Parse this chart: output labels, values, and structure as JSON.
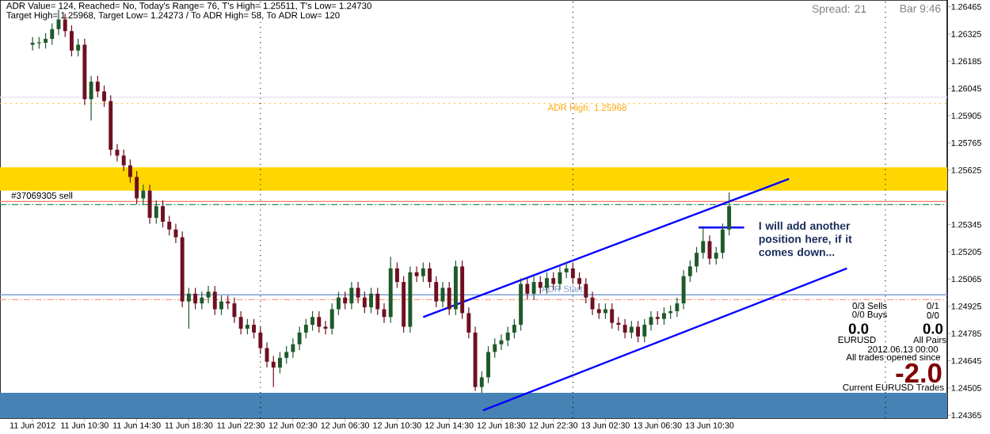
{
  "chart_data": {
    "type": "candlestick",
    "x": [
      "2012-06-11T06:30",
      "2012-06-11T07:00",
      "2012-06-11T07:30",
      "2012-06-11T08:00",
      "2012-06-11T08:30",
      "2012-06-11T09:00",
      "2012-06-11T09:30",
      "2012-06-11T10:00",
      "2012-06-11T10:30",
      "2012-06-11T11:00",
      "2012-06-11T11:30",
      "2012-06-11T12:00",
      "2012-06-11T12:30",
      "2012-06-11T13:00",
      "2012-06-11T13:30",
      "2012-06-11T14:00",
      "2012-06-11T14:30",
      "2012-06-11T15:00",
      "2012-06-11T15:30",
      "2012-06-11T16:00",
      "2012-06-11T16:30",
      "2012-06-11T17:00",
      "2012-06-11T17:30",
      "2012-06-11T18:00",
      "2012-06-11T18:30",
      "2012-06-11T19:00",
      "2012-06-11T19:30",
      "2012-06-11T20:00",
      "2012-06-11T20:30",
      "2012-06-11T21:00",
      "2012-06-11T21:30",
      "2012-06-11T22:00",
      "2012-06-11T22:30",
      "2012-06-11T23:00",
      "2012-06-11T23:30",
      "2012-06-12T00:00",
      "2012-06-12T00:30",
      "2012-06-12T01:00",
      "2012-06-12T01:30",
      "2012-06-12T02:00",
      "2012-06-12T02:30",
      "2012-06-12T03:00",
      "2012-06-12T03:30",
      "2012-06-12T04:00",
      "2012-06-12T04:30",
      "2012-06-12T05:00",
      "2012-06-12T05:30",
      "2012-06-12T06:00",
      "2012-06-12T06:30",
      "2012-06-12T07:00",
      "2012-06-12T07:30",
      "2012-06-12T08:00",
      "2012-06-12T08:30",
      "2012-06-12T09:00",
      "2012-06-12T09:30",
      "2012-06-12T10:00",
      "2012-06-12T10:30",
      "2012-06-12T11:00",
      "2012-06-12T11:30",
      "2012-06-12T12:00",
      "2012-06-12T12:30",
      "2012-06-12T13:00",
      "2012-06-12T13:30",
      "2012-06-12T14:00",
      "2012-06-12T14:30",
      "2012-06-12T15:00",
      "2012-06-12T15:30",
      "2012-06-12T16:00",
      "2012-06-12T16:30",
      "2012-06-12T17:00",
      "2012-06-12T17:30",
      "2012-06-12T18:00",
      "2012-06-12T18:30",
      "2012-06-12T19:00",
      "2012-06-12T19:30",
      "2012-06-12T20:00",
      "2012-06-12T20:30",
      "2012-06-12T21:00",
      "2012-06-12T21:30",
      "2012-06-12T22:00",
      "2012-06-12T22:30",
      "2012-06-12T23:00",
      "2012-06-12T23:30",
      "2012-06-13T00:00",
      "2012-06-13T00:30",
      "2012-06-13T01:00",
      "2012-06-13T01:30",
      "2012-06-13T02:00",
      "2012-06-13T02:30",
      "2012-06-13T03:00",
      "2012-06-13T03:30",
      "2012-06-13T04:00",
      "2012-06-13T04:30",
      "2012-06-13T05:00",
      "2012-06-13T05:30",
      "2012-06-13T06:00",
      "2012-06-13T06:30",
      "2012-06-13T07:00",
      "2012-06-13T07:30",
      "2012-06-13T08:00",
      "2012-06-13T08:30",
      "2012-06-13T09:00",
      "2012-06-13T09:30",
      "2012-06-13T10:00",
      "2012-06-13T10:30",
      "2012-06-13T11:00",
      "2012-06-13T11:30",
      "2012-06-13T12:00"
    ],
    "ohlc": [
      [
        1.2627,
        1.2631,
        1.2624,
        1.2628
      ],
      [
        1.2628,
        1.2631,
        1.2625,
        1.2628
      ],
      [
        1.2628,
        1.2633,
        1.2625,
        1.263
      ],
      [
        1.263,
        1.2638,
        1.2627,
        1.2635
      ],
      [
        1.2635,
        1.2645,
        1.2632,
        1.264
      ],
      [
        1.264,
        1.2643,
        1.2631,
        1.2634
      ],
      [
        1.2634,
        1.2637,
        1.2621,
        1.2624
      ],
      [
        1.2624,
        1.263,
        1.2621,
        1.2627
      ],
      [
        1.2627,
        1.263,
        1.2596,
        1.2599
      ],
      [
        1.2599,
        1.2611,
        1.2588,
        1.2608
      ],
      [
        1.2608,
        1.2611,
        1.26,
        1.2603
      ],
      [
        1.2603,
        1.2606,
        1.2595,
        1.2598
      ],
      [
        1.2598,
        1.2601,
        1.257,
        1.2573
      ],
      [
        1.2573,
        1.2576,
        1.2567,
        1.257
      ],
      [
        1.257,
        1.2573,
        1.2562,
        1.2565
      ],
      [
        1.2565,
        1.2568,
        1.2556,
        1.2559
      ],
      [
        1.2559,
        1.2562,
        1.2545,
        1.2548
      ],
      [
        1.2548,
        1.2555,
        1.2545,
        1.2552
      ],
      [
        1.2552,
        1.2555,
        1.2535,
        1.2538
      ],
      [
        1.2538,
        1.2547,
        1.2535,
        1.2544
      ],
      [
        1.2544,
        1.2547,
        1.2533,
        1.2536
      ],
      [
        1.2536,
        1.2539,
        1.2529,
        1.2532
      ],
      [
        1.2532,
        1.2535,
        1.2525,
        1.2528
      ],
      [
        1.2528,
        1.2531,
        1.2492,
        1.2495
      ],
      [
        1.2495,
        1.2502,
        1.2481,
        1.2499
      ],
      [
        1.2499,
        1.2502,
        1.2491,
        1.2494
      ],
      [
        1.2494,
        1.25,
        1.2491,
        1.2497
      ],
      [
        1.2497,
        1.2503,
        1.2494,
        1.25
      ],
      [
        1.25,
        1.2503,
        1.2488,
        1.2491
      ],
      [
        1.2491,
        1.2498,
        1.2488,
        1.2495
      ],
      [
        1.2495,
        1.2498,
        1.2491,
        1.2494
      ],
      [
        1.2494,
        1.2497,
        1.2484,
        1.2487
      ],
      [
        1.2487,
        1.249,
        1.2478,
        1.2481
      ],
      [
        1.2481,
        1.2486,
        1.2478,
        1.2483
      ],
      [
        1.2483,
        1.2486,
        1.2476,
        1.2479
      ],
      [
        1.2479,
        1.2482,
        1.2468,
        1.2471
      ],
      [
        1.2471,
        1.2474,
        1.2461,
        1.2464
      ],
      [
        1.2464,
        1.2467,
        1.2451,
        1.2461
      ],
      [
        1.2461,
        1.2469,
        1.2458,
        1.2466
      ],
      [
        1.2466,
        1.2472,
        1.2463,
        1.2469
      ],
      [
        1.2469,
        1.2476,
        1.2466,
        1.2473
      ],
      [
        1.2473,
        1.2482,
        1.247,
        1.2479
      ],
      [
        1.2479,
        1.2486,
        1.2476,
        1.2483
      ],
      [
        1.2483,
        1.249,
        1.248,
        1.2487
      ],
      [
        1.2487,
        1.249,
        1.2479,
        1.2482
      ],
      [
        1.2482,
        1.2485,
        1.2478,
        1.2481
      ],
      [
        1.2481,
        1.2494,
        1.2478,
        1.2491
      ],
      [
        1.2491,
        1.25,
        1.2488,
        1.2497
      ],
      [
        1.2497,
        1.25,
        1.2491,
        1.2494
      ],
      [
        1.2494,
        1.2505,
        1.2491,
        1.2502
      ],
      [
        1.2502,
        1.2505,
        1.2494,
        1.2497
      ],
      [
        1.2497,
        1.25,
        1.2489,
        1.2492
      ],
      [
        1.2492,
        1.2502,
        1.2489,
        1.2499
      ],
      [
        1.2499,
        1.2502,
        1.2488,
        1.2491
      ],
      [
        1.2491,
        1.2494,
        1.2484,
        1.2487
      ],
      [
        1.2487,
        1.2518,
        1.2484,
        1.2512
      ],
      [
        1.2512,
        1.2515,
        1.2502,
        1.2505
      ],
      [
        1.2505,
        1.2508,
        1.2479,
        1.2482
      ],
      [
        1.2482,
        1.2513,
        1.2479,
        1.251
      ],
      [
        1.251,
        1.2513,
        1.2505,
        1.2508
      ],
      [
        1.2508,
        1.2515,
        1.2505,
        1.2512
      ],
      [
        1.2512,
        1.2515,
        1.2502,
        1.2505
      ],
      [
        1.2505,
        1.2508,
        1.2492,
        1.2495
      ],
      [
        1.2495,
        1.2505,
        1.2492,
        1.2502
      ],
      [
        1.2502,
        1.2505,
        1.2488,
        1.2491
      ],
      [
        1.2491,
        1.2516,
        1.2488,
        1.2513
      ],
      [
        1.2513,
        1.2516,
        1.2486,
        1.2489
      ],
      [
        1.2489,
        1.2492,
        1.2476,
        1.2479
      ],
      [
        1.2479,
        1.2482,
        1.2449,
        1.2451
      ],
      [
        1.2451,
        1.2459,
        1.2448,
        1.2456
      ],
      [
        1.2456,
        1.2472,
        1.2453,
        1.2469
      ],
      [
        1.2469,
        1.2476,
        1.2466,
        1.2473
      ],
      [
        1.2473,
        1.2478,
        1.247,
        1.2475
      ],
      [
        1.2475,
        1.2482,
        1.2472,
        1.2479
      ],
      [
        1.2479,
        1.2486,
        1.2476,
        1.2483
      ],
      [
        1.2483,
        1.2507,
        1.248,
        1.2504
      ],
      [
        1.2504,
        1.2507,
        1.2496,
        1.2499
      ],
      [
        1.2499,
        1.2508,
        1.2496,
        1.2505
      ],
      [
        1.2505,
        1.2508,
        1.2499,
        1.2502
      ],
      [
        1.2502,
        1.251,
        1.2499,
        1.2507
      ],
      [
        1.2507,
        1.251,
        1.2501,
        1.2504
      ],
      [
        1.2504,
        1.2513,
        1.2501,
        1.251
      ],
      [
        1.251,
        1.2515,
        1.2507,
        1.2512
      ],
      [
        1.2512,
        1.2515,
        1.2504,
        1.2507
      ],
      [
        1.2507,
        1.251,
        1.2501,
        1.2504
      ],
      [
        1.2504,
        1.2507,
        1.2494,
        1.2497
      ],
      [
        1.2497,
        1.25,
        1.2488,
        1.2491
      ],
      [
        1.2491,
        1.2494,
        1.2486,
        1.2489
      ],
      [
        1.2489,
        1.2494,
        1.2486,
        1.2491
      ],
      [
        1.2491,
        1.2494,
        1.2481,
        1.2484
      ],
      [
        1.2484,
        1.2487,
        1.248,
        1.2483
      ],
      [
        1.2483,
        1.2486,
        1.2476,
        1.2479
      ],
      [
        1.2479,
        1.2485,
        1.2476,
        1.2482
      ],
      [
        1.2482,
        1.2485,
        1.2474,
        1.2477
      ],
      [
        1.2477,
        1.2486,
        1.2474,
        1.2483
      ],
      [
        1.2483,
        1.249,
        1.248,
        1.2487
      ],
      [
        1.2487,
        1.249,
        1.2483,
        1.2486
      ],
      [
        1.2486,
        1.2492,
        1.2483,
        1.2489
      ],
      [
        1.2489,
        1.2493,
        1.2486,
        1.249
      ],
      [
        1.249,
        1.2497,
        1.2487,
        1.2494
      ],
      [
        1.2494,
        1.2511,
        1.2491,
        1.2508
      ],
      [
        1.2508,
        1.2516,
        1.2505,
        1.2513
      ],
      [
        1.2513,
        1.2523,
        1.251,
        1.252
      ],
      [
        1.252,
        1.2533,
        1.2517,
        1.2526
      ],
      [
        1.2526,
        1.2529,
        1.2514,
        1.2517
      ],
      [
        1.2517,
        1.2523,
        1.2514,
        1.252
      ],
      [
        1.252,
        1.2535,
        1.2517,
        1.2532
      ],
      [
        1.2532,
        1.2551,
        1.2529,
        1.2544
      ]
    ],
    "series": [
      {
        "type": "line",
        "color": "#0000ff",
        "x": [
          "2012-06-12T12:30",
          "2012-06-13T16:36"
        ],
        "values": [
          1.2487,
          1.2558
        ]
      },
      {
        "type": "line",
        "color": "#0000ff",
        "x": [
          "2012-06-12T17:06",
          "2012-06-13T21:03"
        ],
        "values": [
          1.2439,
          1.2512
        ]
      },
      {
        "type": "line",
        "color": "#0000ff",
        "x": [
          "2012-06-13T09:39",
          "2012-06-13T13:09"
        ],
        "values": [
          1.2533,
          1.2533
        ]
      }
    ],
    "xlim": [
      "2012-06-11T04:00",
      "2012-06-14T04:45"
    ],
    "ylim": [
      1.2435,
      1.265
    ],
    "xticks": [
      {
        "value": "2012-06-11T06:30",
        "label": "11 Jun 2012"
      },
      {
        "value": "2012-06-11T10:30",
        "label": "11 Jun 10:30"
      },
      {
        "value": "2012-06-11T14:30",
        "label": "11 Jun 14:30"
      },
      {
        "value": "2012-06-11T18:30",
        "label": "11 Jun 18:30"
      },
      {
        "value": "2012-06-11T22:30",
        "label": "11 Jun 22:30"
      },
      {
        "value": "2012-06-12T02:30",
        "label": "12 Jun 02:30"
      },
      {
        "value": "2012-06-12T06:30",
        "label": "12 Jun 06:30"
      },
      {
        "value": "2012-06-12T10:30",
        "label": "12 Jun 10:30"
      },
      {
        "value": "2012-06-12T14:30",
        "label": "12 Jun 14:30"
      },
      {
        "value": "2012-06-12T18:30",
        "label": "12 Jun 18:30"
      },
      {
        "value": "2012-06-12T22:30",
        "label": "12 Jun 22:30"
      },
      {
        "value": "2012-06-13T02:30",
        "label": "13 Jun 02:30"
      },
      {
        "value": "2012-06-13T06:30",
        "label": "13 Jun 06:30"
      },
      {
        "value": "2012-06-13T10:30",
        "label": "13 Jun 10:30"
      }
    ],
    "yticks": [
      1.24365,
      1.24505,
      1.24645,
      1.24785,
      1.24925,
      1.25065,
      1.25205,
      1.25345,
      1.25625,
      1.25765,
      1.25905,
      1.26045,
      1.26185,
      1.26325,
      1.26465
    ],
    "ref_lines": [
      {
        "axis": "y",
        "value": 1.25968,
        "label": "ADR High: 1.25968",
        "color": "#ffa500",
        "line_style": "dotted"
      },
      {
        "axis": "y",
        "value": 1.25464,
        "label": "#37069305 sell",
        "color": "#ff7f6a",
        "line_style": "solid"
      },
      {
        "axis": "y",
        "value": 1.25448,
        "color": "#2e8b57",
        "line_style": "dashed"
      },
      {
        "axis": "y",
        "value": 1.24959,
        "color": "#ff9f7f",
        "line_style": "dashed"
      },
      {
        "axis": "y",
        "value": 1.26,
        "color": "#e4e4f8",
        "line_style": "solid"
      },
      {
        "axis": "y",
        "value": 1.24984,
        "label": "ADR Start",
        "color": "#7f9fd0",
        "line_style": "solid"
      },
      {
        "axis": "x",
        "value": "2012-06-12T00:00",
        "color": "#000000",
        "line_style": "dotted"
      },
      {
        "axis": "x",
        "value": "2012-06-13T00:00",
        "color": "#000000",
        "line_style": "dotted"
      },
      {
        "axis": "x",
        "value": "2012-06-14T00:00",
        "color": "#000000",
        "line_style": "dotted"
      }
    ],
    "bands": [
      {
        "axis": "y",
        "from": 1.2552,
        "to": 1.2564,
        "color": "#ffd700"
      },
      {
        "axis": "y",
        "from": 1.2435,
        "to": 1.2448,
        "color": "#4682b4"
      }
    ],
    "annotations": [
      "ADR Value= 124, Reached= No, Today's Range= 76, T's High= 1.25511, T's Low= 1.24730",
      "Target High= 1.25968, Target Low= 1.24273 / To ADR High= 58, To ADR Low= 120",
      "Spread: 21",
      "Bar 9:46",
      "I will add another position here, if it comes down...",
      "0/3 Sells",
      "0/1",
      "0/0 Buys",
      "0/0",
      "0.0",
      "0.0",
      "EURUSD",
      "All Pairs",
      "2012.06.13 00:00",
      "All trades opened since",
      "-2.0",
      "Current EURUSD Trades"
    ]
  }
}
